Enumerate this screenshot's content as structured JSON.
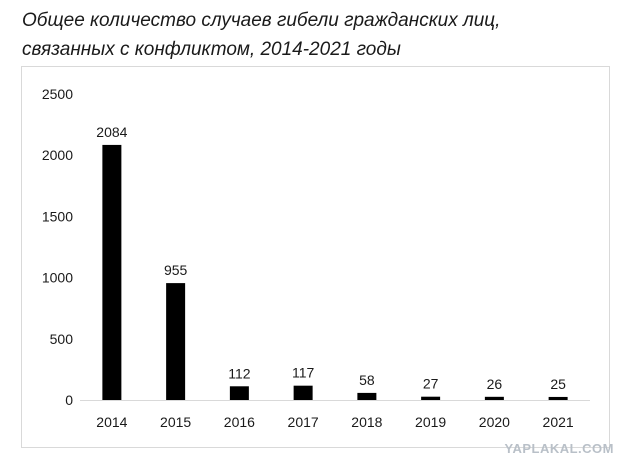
{
  "chart_data": {
    "type": "bar",
    "title": "Общее количество случаев гибели гражданских лиц, связанных с конфликтом, 2014-2021 годы",
    "title_lines": [
      "Общее количество случаев гибели гражданских лиц,",
      "связанных с конфликтом, 2014-2021 годы"
    ],
    "categories": [
      "2014",
      "2015",
      "2016",
      "2017",
      "2018",
      "2019",
      "2020",
      "2021"
    ],
    "values": [
      2084,
      955,
      112,
      117,
      58,
      27,
      26,
      25
    ],
    "ylim": [
      0,
      2500
    ],
    "yticks": [
      0,
      500,
      1000,
      1500,
      2000,
      2500
    ],
    "xlabel": "",
    "ylabel": "",
    "grid": false,
    "legend": "none",
    "bar_color": "#000000"
  },
  "watermark": "YAPLAKAL.COM"
}
